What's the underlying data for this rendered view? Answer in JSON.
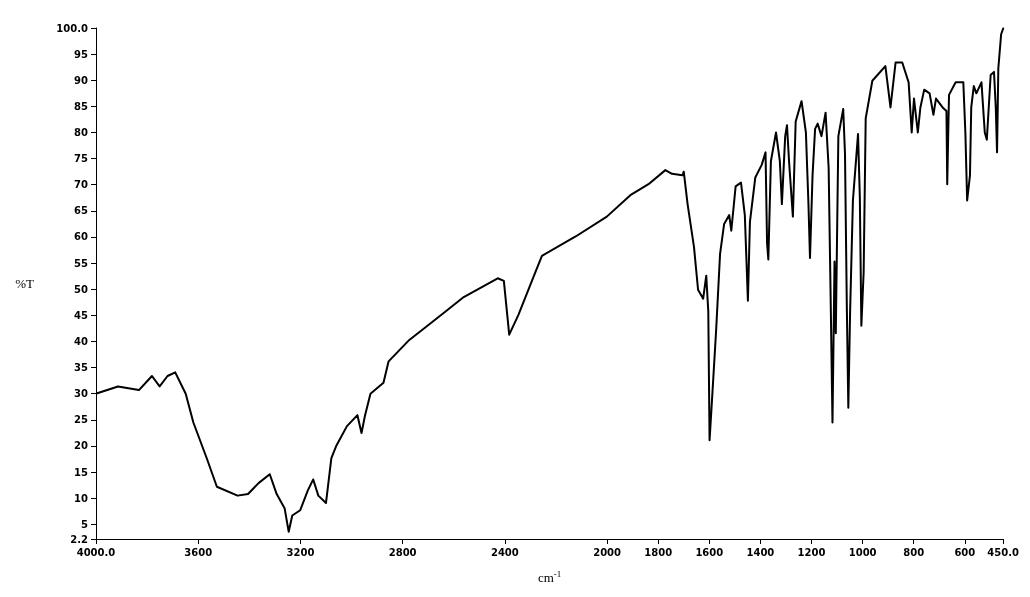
{
  "chart_data": {
    "type": "line",
    "xlabel": "cm$^{-1}$",
    "ylabel": "%T",
    "xlim": [
      4000,
      450
    ],
    "ylim": [
      2.2,
      100
    ],
    "xticks": [
      {
        "value": 4000,
        "label": "4000.0"
      },
      3600,
      3200,
      2800,
      2400,
      2000,
      1800,
      1600,
      1400,
      1200,
      1000,
      800,
      600,
      {
        "value": 450,
        "label": "450.0"
      }
    ],
    "yticks": [
      2.2,
      5,
      10,
      15,
      20,
      25,
      30,
      35,
      40,
      45,
      50,
      55,
      60,
      65,
      70,
      75,
      80,
      85,
      90,
      95,
      {
        "value": 100,
        "label": "100.0"
      }
    ],
    "grid": false,
    "marker": "none",
    "line_style": "solid",
    "series": [
      {
        "color": "#000000",
        "x": [
          3995,
          3914,
          3832,
          3781,
          3751,
          3720,
          3690,
          3649,
          3619,
          3567,
          3527,
          3446,
          3405,
          3364,
          3320,
          3293,
          3262,
          3246,
          3232,
          3201,
          3171,
          3150,
          3130,
          3100,
          3079,
          3059,
          3018,
          2977,
          2961,
          2947,
          2926,
          2875,
          2855,
          2774,
          2693,
          2631,
          2561,
          2428,
          2404,
          2383,
          2347,
          2286,
          2255,
          2123,
          2001,
          1909,
          1838,
          1772,
          1746,
          1705,
          1700,
          1685,
          1660,
          1644,
          1624,
          1612,
          1604,
          1599,
          1588,
          1573,
          1558,
          1542,
          1522,
          1514,
          1497,
          1476,
          1461,
          1449,
          1441,
          1420,
          1395,
          1380,
          1374,
          1369,
          1359,
          1339,
          1324,
          1316,
          1303,
          1296,
          1288,
          1273,
          1262,
          1239,
          1222,
          1212,
          1206,
          1196,
          1186,
          1176,
          1161,
          1145,
          1133,
          1125,
          1118,
          1110,
          1105,
          1095,
          1076,
          1069,
          1062,
          1056,
          1049,
          1038,
          1018,
          1011,
          1005,
          996,
          988,
          962,
          911,
          891,
          871,
          845,
          820,
          808,
          799,
          784,
          774,
          759,
          738,
          723,
          713,
          687,
          672,
          669,
          662,
          636,
          606,
          598,
          591,
          580,
          575,
          565,
          555,
          535,
          522,
          514,
          499,
          486,
          479,
          474,
          469,
          458,
          450
        ],
        "values": [
          30.1,
          31.4,
          30.7,
          33.4,
          31.4,
          33.4,
          34.1,
          30.0,
          24.5,
          17.7,
          12.2,
          10.5,
          10.8,
          12.9,
          14.6,
          10.8,
          8.1,
          3.6,
          6.7,
          7.7,
          11.5,
          13.6,
          10.5,
          9.1,
          17.7,
          20.1,
          23.8,
          25.9,
          22.5,
          25.9,
          30.0,
          32.1,
          36.2,
          40.3,
          43.4,
          45.8,
          48.5,
          52.1,
          51.6,
          41.3,
          45.1,
          52.6,
          56.4,
          60.1,
          63.9,
          68.0,
          70.1,
          72.8,
          72.1,
          71.8,
          72.5,
          66.3,
          58.1,
          49.9,
          48.2,
          52.6,
          45.8,
          21.1,
          30.0,
          42.4,
          56.7,
          62.5,
          64.2,
          61.2,
          69.7,
          70.4,
          64.2,
          47.8,
          62.9,
          71.4,
          73.8,
          76.2,
          58.8,
          55.7,
          74.5,
          80.0,
          74.5,
          66.3,
          79.3,
          81.4,
          74.5,
          63.9,
          82.1,
          86.0,
          80.0,
          66.3,
          56.0,
          71.8,
          80.7,
          81.7,
          79.3,
          83.8,
          73.2,
          47.8,
          24.5,
          55.3,
          41.6,
          79.3,
          84.5,
          75.9,
          47.1,
          27.3,
          45.8,
          67.0,
          79.7,
          67.7,
          43.0,
          53.3,
          82.7,
          89.9,
          92.7,
          84.8,
          93.4,
          93.4,
          89.6,
          80.0,
          86.5,
          80.0,
          84.8,
          88.2,
          87.5,
          83.4,
          86.5,
          84.8,
          84.1,
          70.1,
          87.2,
          89.6,
          89.6,
          80.0,
          67.0,
          71.8,
          84.8,
          88.9,
          87.5,
          89.6,
          80.0,
          78.6,
          91.0,
          91.6,
          84.8,
          76.2,
          92.3,
          98.8,
          99.9
        ]
      }
    ]
  }
}
